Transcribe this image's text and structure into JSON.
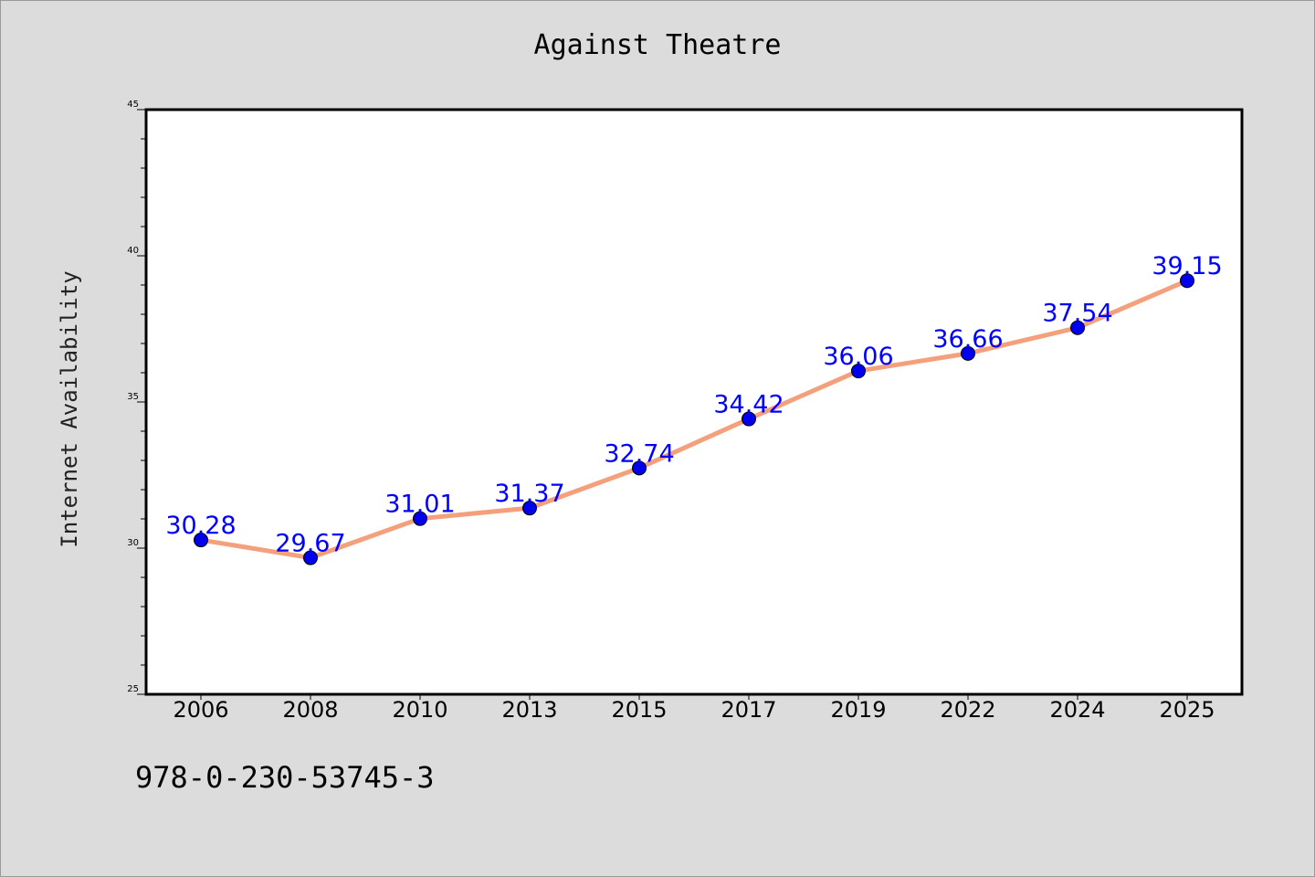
{
  "chart_data": {
    "type": "line",
    "title": "Against Theatre",
    "xlabel": "",
    "ylabel": "Internet Availability",
    "categories": [
      "2006",
      "2008",
      "2010",
      "2013",
      "2015",
      "2017",
      "2019",
      "2022",
      "2024",
      "2025"
    ],
    "series": [
      {
        "values": [
          30.28,
          29.67,
          31.01,
          31.37,
          32.74,
          34.42,
          36.06,
          36.66,
          37.54,
          39.15
        ],
        "labels": [
          "30.28",
          "29.67",
          "31.01",
          "31.37",
          "32.74",
          "34.42",
          "36.06",
          "36.66",
          "37.54",
          "39.15"
        ],
        "line_color": "#f4a07c",
        "marker_color": "#0000ee",
        "label_color": "#0000ff"
      }
    ],
    "ylim": [
      25,
      45
    ],
    "y_ticks": [
      "25",
      "30",
      "35",
      "40",
      "45"
    ],
    "grid": false,
    "legend": "none"
  },
  "footer": {
    "isbn": "978-0-230-53745-3"
  }
}
